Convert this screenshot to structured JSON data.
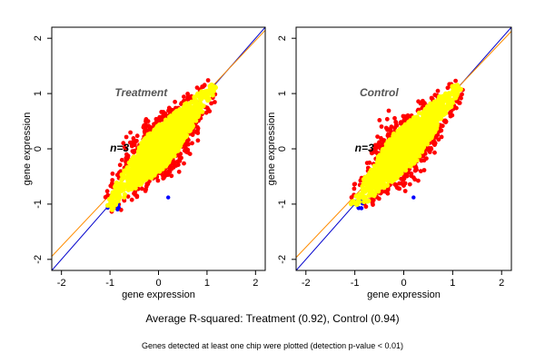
{
  "summary": "Average R-squared: Treatment (0.92), Control (0.94)",
  "footnote": "Genes detected at least one chip were plotted (detection p-value < 0.01)",
  "chart_data": [
    {
      "type": "scatter",
      "panel_label": "Treatment",
      "n_label": "n=3",
      "xlabel": "gene expression",
      "ylabel": "gene expression",
      "xlim": [
        -2.2,
        2.2
      ],
      "ylim": [
        -2.2,
        2.2
      ],
      "xticks": [
        -2,
        -1,
        0,
        1,
        2
      ],
      "yticks": [
        -2,
        -1,
        0,
        1,
        2
      ],
      "cloud": {
        "x_range": [
          -1.1,
          1.2
        ],
        "y_range": [
          -1.1,
          1.3
        ],
        "correlation": 0.92
      },
      "lines": [
        {
          "color": "#0000cc",
          "slope": 1.0,
          "intercept": 0.0
        },
        {
          "color": "#ff8c00",
          "slope": 0.93,
          "intercept": 0.1
        }
      ],
      "point_colors": {
        "core": "#ffff00",
        "outlier": "#ff0000",
        "low": "#0000ff",
        "edge": "#000000"
      }
    },
    {
      "type": "scatter",
      "panel_label": "Control",
      "n_label": "n=3",
      "xlabel": "gene expression",
      "ylabel": "gene expression",
      "xlim": [
        -2.2,
        2.2
      ],
      "ylim": [
        -2.2,
        2.2
      ],
      "xticks": [
        -2,
        -1,
        0,
        1,
        2
      ],
      "yticks": [
        -2,
        -1,
        0,
        1,
        2
      ],
      "cloud": {
        "x_range": [
          -1.1,
          1.2
        ],
        "y_range": [
          -1.1,
          1.3
        ],
        "correlation": 0.94
      },
      "lines": [
        {
          "color": "#0000cc",
          "slope": 1.0,
          "intercept": 0.0
        },
        {
          "color": "#ff8c00",
          "slope": 0.93,
          "intercept": 0.08
        }
      ],
      "point_colors": {
        "core": "#ffff00",
        "outlier": "#ff0000",
        "low": "#0000ff",
        "edge": "#000000"
      }
    }
  ]
}
